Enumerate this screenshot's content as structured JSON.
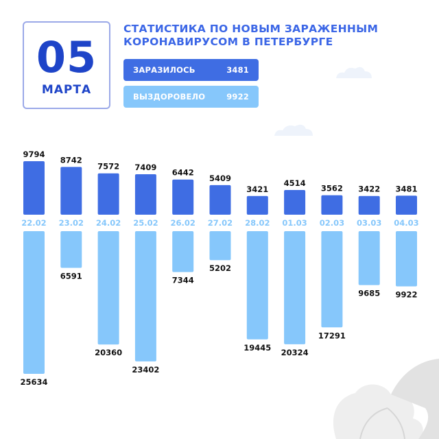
{
  "date": {
    "day": "05",
    "month": "МАРТА"
  },
  "title": [
    "СТАТИСТИКА ПО НОВЫМ ЗАРАЖЕННЫМ",
    "КОРОНАВИРУСОМ В ПЕТЕРБУРГЕ"
  ],
  "legend": {
    "infected": {
      "label": "ЗАРАЗИЛОСЬ",
      "value": "3481"
    },
    "recovered": {
      "label": "ВЫЗДОРОВЕЛО",
      "value": "9922"
    }
  },
  "colors": {
    "infected": "#3f6de3",
    "recovered": "#86c7fb",
    "date_text": "#1e44c8",
    "title_text": "#3b66e6",
    "axis_label": "#86c7fb",
    "value_label": "#111111"
  },
  "chart_data": {
    "type": "bar",
    "categories": [
      "22.02",
      "23.02",
      "24.02",
      "25.02",
      "26.02",
      "27.02",
      "28.02",
      "01.03",
      "02.03",
      "03.03",
      "04.03"
    ],
    "series": [
      {
        "name": "ЗАРАЗИЛОСЬ",
        "direction": "up",
        "values": [
          9794,
          8742,
          7572,
          7409,
          6442,
          5409,
          3421,
          4514,
          3562,
          3422,
          3481
        ]
      },
      {
        "name": "ВЫЗДОРОВЕЛО",
        "direction": "down",
        "values": [
          25634,
          6591,
          20360,
          23402,
          7344,
          5202,
          19445,
          20324,
          17291,
          9685,
          9922
        ]
      }
    ]
  }
}
